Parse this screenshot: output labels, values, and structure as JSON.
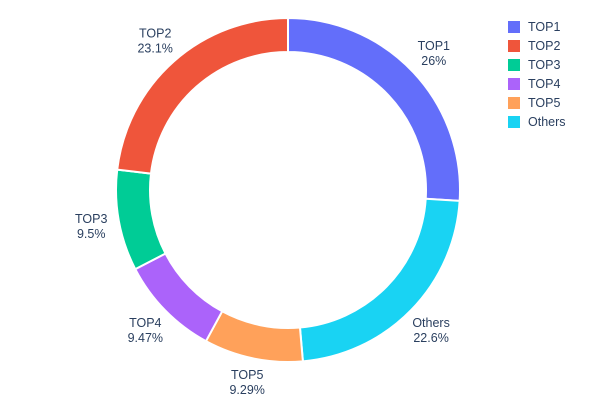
{
  "chart_data": {
    "type": "pie",
    "subtype": "donut",
    "title": "",
    "hole_ratio": 0.8,
    "legend_position": "top-right",
    "background": "#ffffff",
    "label_text_color": "#2a3f5f",
    "segments": [
      {
        "label": "TOP1",
        "value": 26,
        "pct_label": "26%",
        "color": "#636EFA"
      },
      {
        "label": "TOP2",
        "value": 23.1,
        "pct_label": "23.1%",
        "color": "#EF553B"
      },
      {
        "label": "TOP3",
        "value": 9.5,
        "pct_label": "9.5%",
        "color": "#00CC96"
      },
      {
        "label": "TOP4",
        "value": 9.47,
        "pct_label": "9.47%",
        "color": "#AB63FA"
      },
      {
        "label": "TOP5",
        "value": 9.29,
        "pct_label": "9.29%",
        "color": "#FFA15A"
      },
      {
        "label": "Others",
        "value": 22.6,
        "pct_label": "22.6%",
        "color": "#19D3F3"
      }
    ],
    "draw_order_clockwise_from_top": [
      "TOP1",
      "Others",
      "TOP5",
      "TOP4",
      "TOP3",
      "TOP2"
    ],
    "legend_order": [
      "TOP1",
      "TOP2",
      "TOP3",
      "TOP4",
      "TOP5",
      "Others"
    ]
  }
}
